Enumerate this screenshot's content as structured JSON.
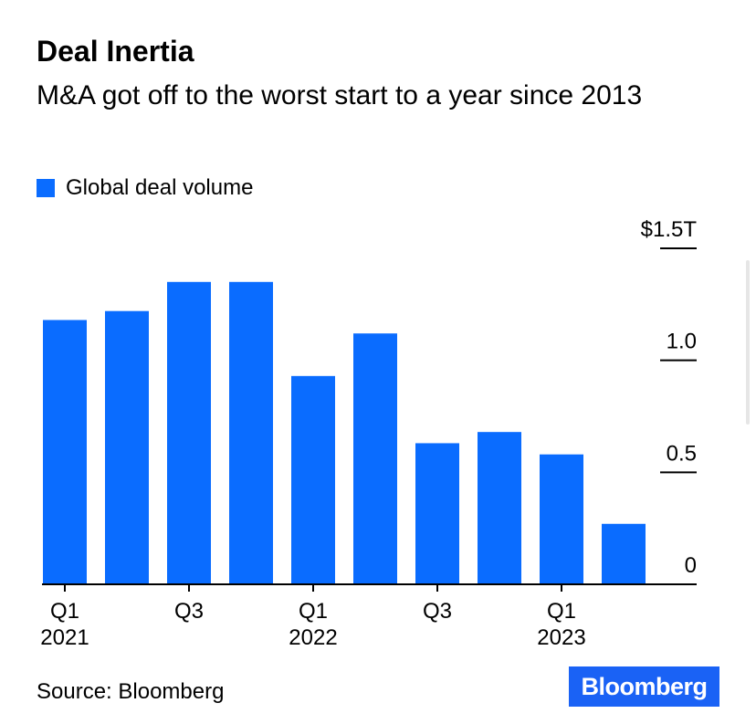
{
  "header": {
    "title": "Deal Inertia",
    "subtitle": "M&A got off to the worst start to a year since 2013"
  },
  "legend": {
    "label": "Global deal volume",
    "color": "#0a6cff"
  },
  "footer": {
    "source": "Source: Bloomberg",
    "logo_text": "Bloomberg"
  },
  "chart_data": {
    "type": "bar",
    "categories": [
      "Q1 2021",
      "Q2 2021",
      "Q3 2021",
      "Q4 2021",
      "Q1 2022",
      "Q2 2022",
      "Q3 2022",
      "Q4 2022",
      "Q1 2023",
      "Q2 2023"
    ],
    "series": [
      {
        "name": "Global deal volume",
        "values": [
          1.18,
          1.22,
          1.35,
          1.35,
          0.93,
          1.12,
          0.63,
          0.68,
          0.58,
          0.27
        ]
      }
    ],
    "x_tick_labels": [
      {
        "index": 0,
        "line1": "Q1",
        "line2": "2021"
      },
      {
        "index": 2,
        "line1": "Q3",
        "line2": ""
      },
      {
        "index": 4,
        "line1": "Q1",
        "line2": "2022"
      },
      {
        "index": 6,
        "line1": "Q3",
        "line2": ""
      },
      {
        "index": 8,
        "line1": "Q1",
        "line2": "2023"
      }
    ],
    "y_ticks": [
      {
        "value": 0,
        "label": "0"
      },
      {
        "value": 0.5,
        "label": "0.5"
      },
      {
        "value": 1.0,
        "label": "1.0"
      },
      {
        "value": 1.5,
        "label": "$1.5T"
      }
    ],
    "ylim": [
      0,
      1.5
    ],
    "ylabel": "",
    "xlabel": "",
    "y_axis_side": "right",
    "bar_color": "#0a6cff",
    "grid": false
  }
}
